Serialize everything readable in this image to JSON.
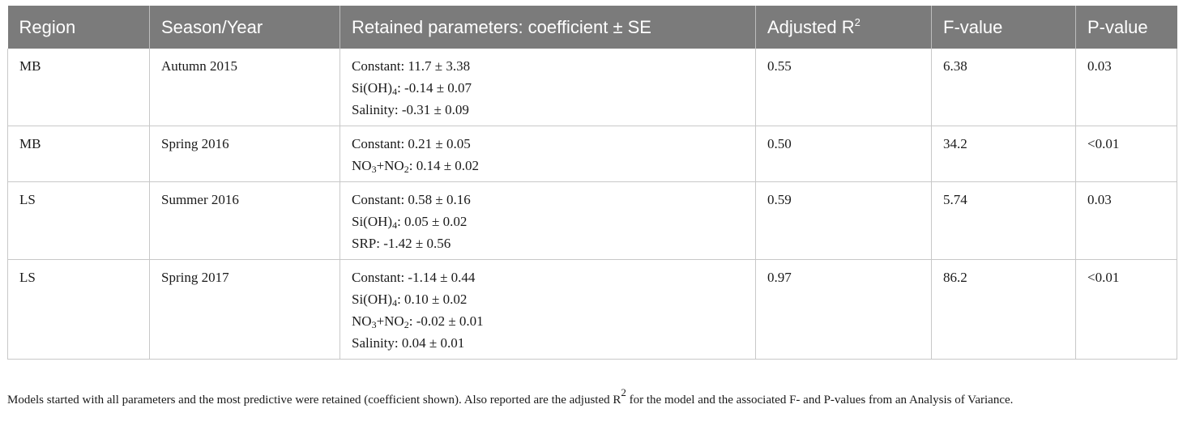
{
  "headers": {
    "region": "Region",
    "season": "Season/Year",
    "params": "Retained parameters: coefficient ± SE",
    "adj_r_prefix": "Adjusted R",
    "adj_r_sup": "2",
    "f": "F-value",
    "p": "P-value"
  },
  "rows": [
    {
      "region": "MB",
      "season": "Autumn 2015",
      "params": [
        {
          "pre": "Constant: 11.7 ± 3.38"
        },
        {
          "pre": "Si(OH)",
          "sub": "4",
          "post": ": -0.14 ± 0.07"
        },
        {
          "pre": "Salinity: -0.31 ± 0.09"
        }
      ],
      "adj_r2": "0.55",
      "f": "6.38",
      "p": "0.03"
    },
    {
      "region": "MB",
      "season": "Spring 2016",
      "params": [
        {
          "pre": "Constant: 0.21 ± 0.05"
        },
        {
          "pre": "NO",
          "sub": "3",
          "mid": "+NO",
          "sub2": "2",
          "post": ": 0.14 ± 0.02"
        }
      ],
      "adj_r2": "0.50",
      "f": "34.2",
      "p": "<0.01"
    },
    {
      "region": "LS",
      "season": "Summer 2016",
      "params": [
        {
          "pre": "Constant: 0.58 ± 0.16"
        },
        {
          "pre": "Si(OH)",
          "sub": "4",
          "post": ": 0.05 ± 0.02"
        },
        {
          "pre": "SRP: -1.42 ± 0.56"
        }
      ],
      "adj_r2": "0.59",
      "f": "5.74",
      "p": "0.03"
    },
    {
      "region": "LS",
      "season": "Spring 2017",
      "params": [
        {
          "pre": "Constant: -1.14 ± 0.44"
        },
        {
          "pre": "Si(OH)",
          "sub": "4",
          "post": ": 0.10 ± 0.02"
        },
        {
          "pre": "NO",
          "sub": "3",
          "mid": "+NO",
          "sub2": "2",
          "post": ": -0.02 ± 0.01"
        },
        {
          "pre": "Salinity: 0.04 ± 0.01"
        }
      ],
      "adj_r2": "0.97",
      "f": "86.2",
      "p": "<0.01"
    }
  ],
  "caption": {
    "part1": "Models started with all parameters and the most predictive were retained (coefficient shown). Also reported are the adjusted R",
    "sup": "2",
    "part2": " for the model and the associated F- and P-values from an Analysis of Variance."
  }
}
